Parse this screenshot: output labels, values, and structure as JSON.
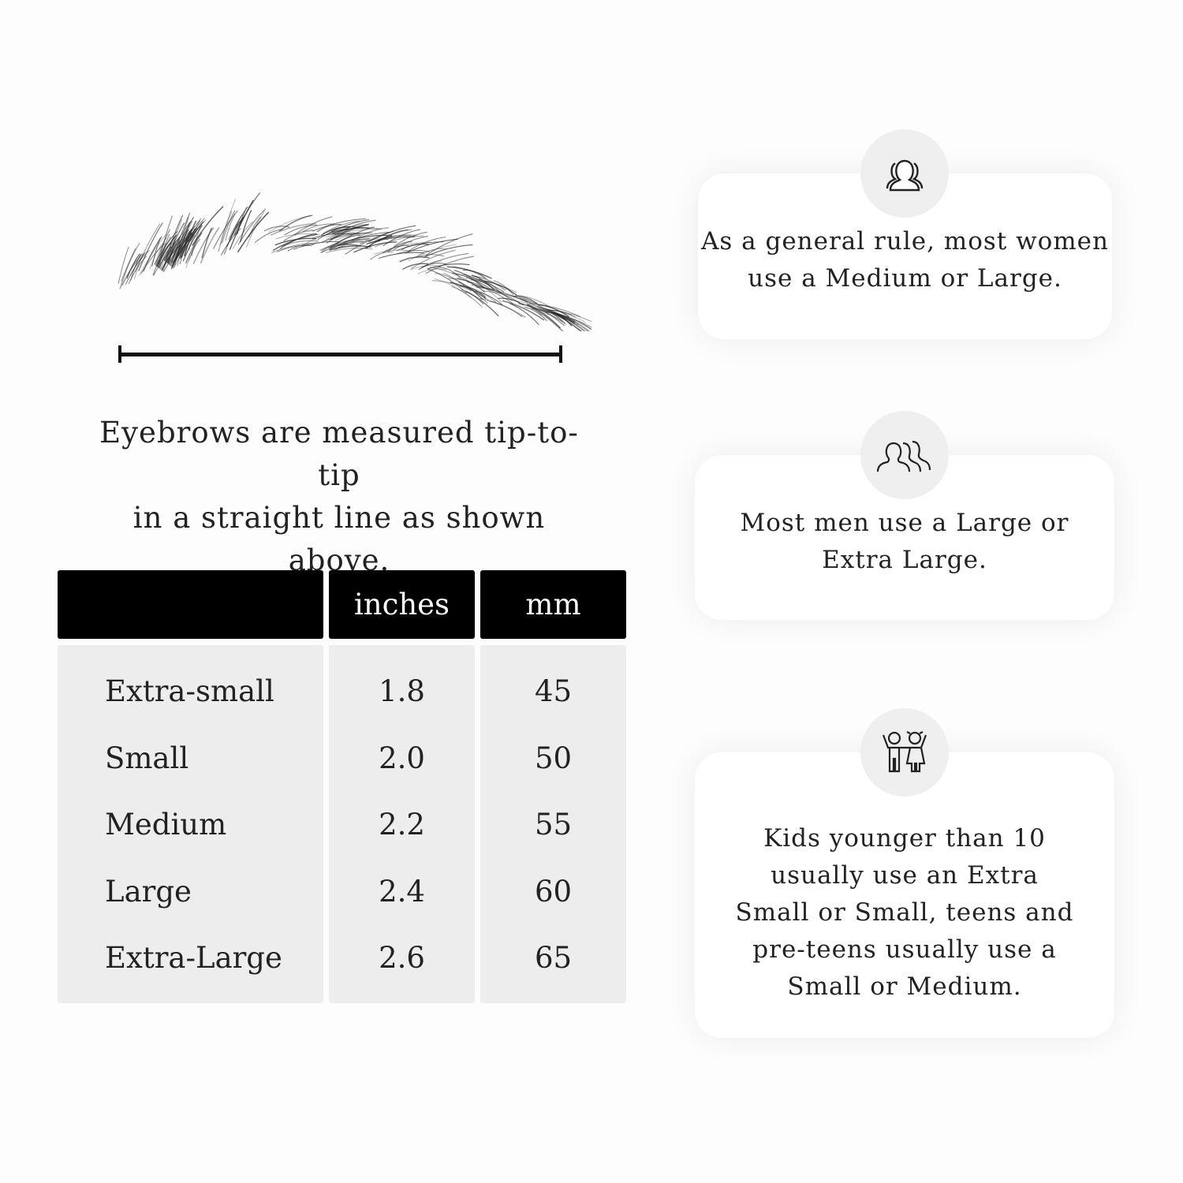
{
  "caption": {
    "line1": "Eyebrows are measured tip-to-tip",
    "line2": "in a straight line as shown above."
  },
  "table": {
    "headers": [
      "",
      "inches",
      "mm"
    ],
    "rows": [
      {
        "size": "Extra-small",
        "inches": "1.8",
        "mm": "45"
      },
      {
        "size": "Small",
        "inches": "2.0",
        "mm": "50"
      },
      {
        "size": "Medium",
        "inches": "2.2",
        "mm": "55"
      },
      {
        "size": "Large",
        "inches": "2.4",
        "mm": "60"
      },
      {
        "size": "Extra-Large",
        "inches": "2.6",
        "mm": "65"
      }
    ]
  },
  "cards": [
    {
      "icon": "women-group-icon",
      "lines": [
        "As a general rule, most women",
        "use a Medium or Large."
      ]
    },
    {
      "icon": "men-group-icon",
      "lines": [
        "Most men use a Large or",
        "Extra Large."
      ]
    },
    {
      "icon": "kids-icon",
      "lines": [
        "Kids younger than 10",
        "usually use an Extra",
        "Small or Small, teens and",
        "pre-teens usually use a",
        "Small or Medium."
      ]
    }
  ],
  "colors": {
    "header": "#000000",
    "body": "#ededed",
    "circle": "#efefef"
  }
}
